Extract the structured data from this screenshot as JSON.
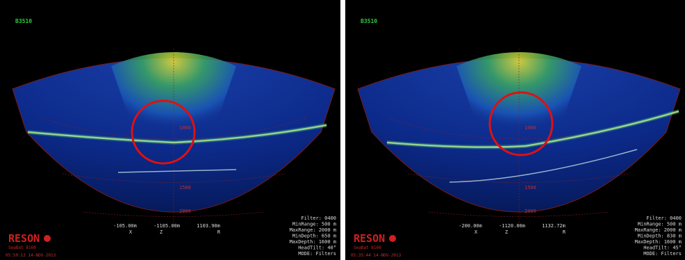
{
  "panels": [
    {
      "status": "B3510",
      "range_labels": [
        "1000",
        "1500",
        "2000"
      ],
      "coordinates": [
        "-105.00m",
        "-1105.00m",
        "1103.90m"
      ],
      "axes": [
        "X",
        "Z",
        "R"
      ],
      "settings": [
        "Filter: 0400",
        "MinRange: 500 m",
        "MaxRange: 2000 m",
        "MinDepth: 650 m",
        "MaxDepth: 1600 m",
        "HeadTilt: 40°",
        "MODE: Filters"
      ],
      "logo": "RESON",
      "product": "SeaBat 8160",
      "timestamp": "05:50:13  14-NOV-2013"
    },
    {
      "status": "B3510",
      "range_labels": [
        "1000",
        "1500",
        "2000"
      ],
      "coordinates": [
        "-200.00m",
        "-1120.00m",
        "1132.72m"
      ],
      "axes": [
        "X",
        "Z",
        "R"
      ],
      "settings": [
        "Filter: 0400",
        "MinRange: 500 m",
        "MaxRange: 2000 m",
        "MinDepth: 830 m",
        "MaxDepth: 1600 m",
        "HeadTilt: 45°",
        "MODE: Filters"
      ],
      "logo": "RESON",
      "product": "SeaBat 8160",
      "timestamp": "05:35:44  14-NOV-2013"
    }
  ]
}
